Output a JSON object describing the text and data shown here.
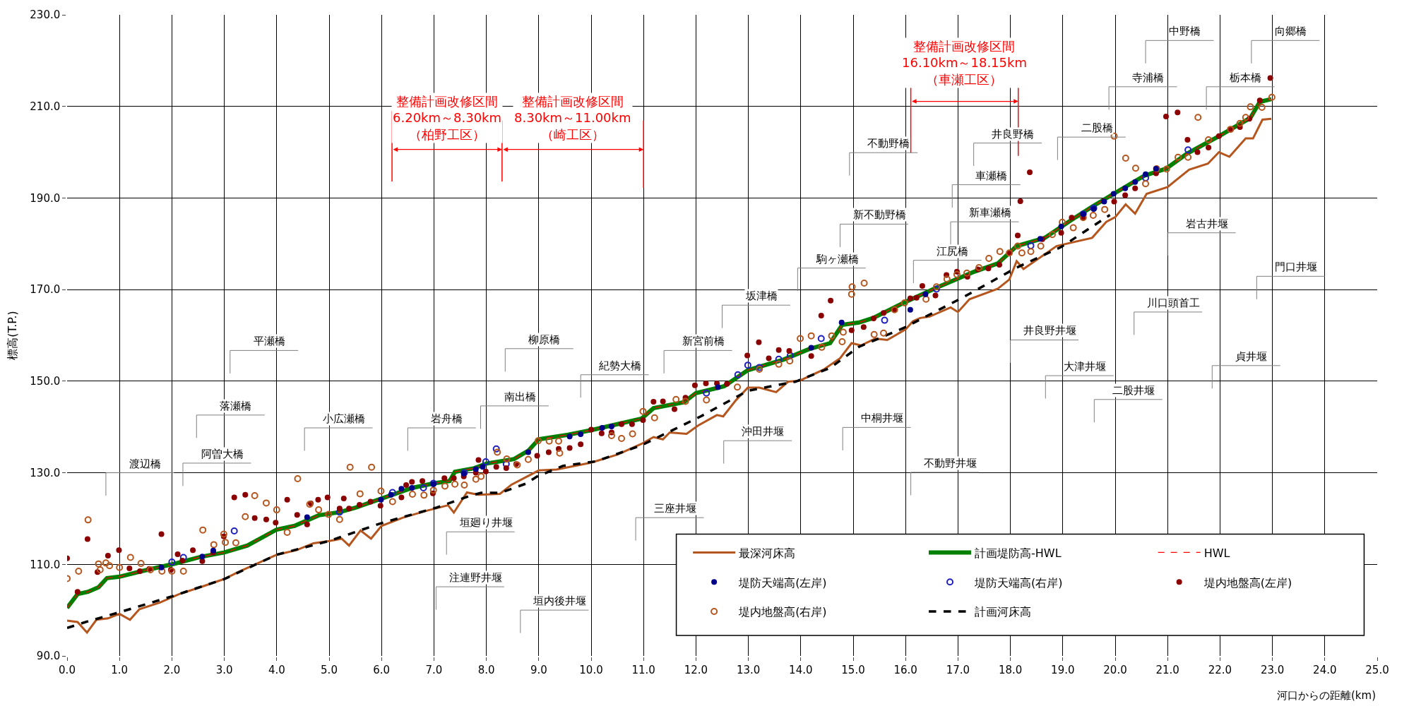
{
  "chart_data": {
    "type": "line",
    "xlabel": "河口からの距離(km)",
    "ylabel": "標高(T.P.)",
    "xlim": [
      0,
      25
    ],
    "ylim": [
      90,
      230
    ],
    "xticks": [
      {
        "value": 0,
        "label": "0.0"
      },
      {
        "value": 1,
        "label": "1.0"
      },
      {
        "value": 2,
        "label": "2.0"
      },
      {
        "value": 3,
        "label": "3.0"
      },
      {
        "value": 4,
        "label": "4.0"
      },
      {
        "value": 5,
        "label": "5.0"
      },
      {
        "value": 6,
        "label": "6.0"
      },
      {
        "value": 7,
        "label": "7.0"
      },
      {
        "value": 8,
        "label": "8.0"
      },
      {
        "value": 9,
        "label": "9.0"
      },
      {
        "value": 10,
        "label": "10.0"
      },
      {
        "value": 11,
        "label": "11.0"
      },
      {
        "value": 12,
        "label": "12.0"
      },
      {
        "value": 13,
        "label": "13.0"
      },
      {
        "value": 14,
        "label": "14.0"
      },
      {
        "value": 15,
        "label": "15.0"
      },
      {
        "value": 16,
        "label": "16.0"
      },
      {
        "value": 17,
        "label": "17.0"
      },
      {
        "value": 18,
        "label": "18.0"
      },
      {
        "value": 19,
        "label": "19.0"
      },
      {
        "value": 20,
        "label": "20.0"
      },
      {
        "value": 21,
        "label": "21.0"
      },
      {
        "value": 22,
        "label": "22.0"
      },
      {
        "value": 23,
        "label": "23.0"
      },
      {
        "value": 24,
        "label": "24.0"
      },
      {
        "value": 25,
        "label": "25.0"
      }
    ],
    "yticks": [
      {
        "value": 90,
        "label": "90.0"
      },
      {
        "value": 110,
        "label": "110.0"
      },
      {
        "value": 130,
        "label": "130.0"
      },
      {
        "value": 150,
        "label": "150.0"
      },
      {
        "value": 170,
        "label": "170.0"
      },
      {
        "value": 190,
        "label": "190.0"
      },
      {
        "value": 210,
        "label": "210.0"
      },
      {
        "value": 230,
        "label": "230.0"
      }
    ],
    "grid": true,
    "legend": "bottom right",
    "series": [
      {
        "name": "最深河床高",
        "color": "#b4561e",
        "line_style": "solid",
        "marker": "none",
        "x": [
          0,
          0.2,
          0.38,
          0.56,
          0.78,
          1.0,
          1.2,
          1.38,
          1.78,
          2.14,
          2.54,
          3.0,
          3.26,
          4.0,
          4.38,
          4.7,
          5.0,
          5.24,
          5.38,
          5.6,
          5.8,
          6.0,
          6.41,
          6.86,
          7.27,
          7.38,
          7.63,
          7.85,
          8.26,
          8.48,
          9.0,
          9.34,
          10.0,
          10.51,
          10.96,
          11.19,
          11.37,
          11.5,
          11.82,
          12.04,
          12.4,
          12.52,
          12.76,
          12.99,
          13.21,
          13.53,
          13.76,
          13.98,
          14.43,
          14.75,
          14.97,
          15.15,
          15.42,
          15.65,
          16.0,
          16.14,
          16.28,
          16.46,
          16.86,
          17.0,
          17.22,
          17.76,
          17.98,
          18.12,
          18.25,
          18.88,
          19.56,
          19.83,
          20.0,
          20.2,
          20.38,
          20.6,
          21.0,
          21.41,
          21.77,
          21.98,
          22.18,
          22.49,
          22.63,
          22.81,
          22.98
        ],
        "values": [
          97.7,
          97.4,
          95.1,
          97.9,
          98.2,
          99.2,
          97.9,
          100.2,
          101.7,
          103.5,
          105,
          106.8,
          108.3,
          112.1,
          113.1,
          114.6,
          115.1,
          115.6,
          114.1,
          117.4,
          115.6,
          118.4,
          120.2,
          121.7,
          122.9,
          121.3,
          125.7,
          125.2,
          125.4,
          127.4,
          130.5,
          130.7,
          132.2,
          134,
          136.3,
          137.8,
          137.3,
          138.8,
          138.5,
          140.3,
          142.6,
          142.3,
          145.8,
          148.6,
          148.6,
          147.6,
          149.9,
          150.1,
          152.5,
          155,
          158.3,
          157.8,
          159.3,
          159,
          161.3,
          163.1,
          163.8,
          164.1,
          166.1,
          165.1,
          167.9,
          170.2,
          172.2,
          176.2,
          174.5,
          179.5,
          181.3,
          184.8,
          185.8,
          188.6,
          186.6,
          190.9,
          192.4,
          196.2,
          197.5,
          200,
          199,
          203,
          203,
          207.1,
          207.3
        ]
      },
      {
        "name": "計画堤防高-HWL",
        "color": "#008000",
        "line_style": "solid",
        "marker": "none",
        "x": [
          0,
          0.2,
          0.4,
          0.6,
          0.76,
          1.0,
          1.42,
          2.0,
          2.54,
          3.0,
          3.44,
          4.0,
          4.34,
          4.8,
          5.2,
          5.51,
          6.01,
          6.59,
          7.0,
          7.3,
          7.4,
          7.77,
          8.0,
          8.53,
          8.8,
          9.0,
          9.56,
          10.0,
          10.96,
          11.19,
          11.77,
          12.0,
          12.54,
          12.99,
          13.67,
          14.16,
          14.56,
          14.79,
          15.11,
          15.38,
          15.96,
          16.59,
          17.31,
          17.76,
          18.12,
          18.66,
          19.11,
          19.56,
          20.0,
          20.56,
          20.97,
          21.37,
          21.98,
          22.58,
          22.76,
          22.98
        ],
        "values": [
          100.5,
          103.5,
          104,
          105,
          107,
          107.3,
          108.5,
          110,
          111.6,
          112.6,
          114.1,
          117.6,
          118.4,
          120.7,
          121.4,
          122.4,
          124.4,
          126.7,
          127.7,
          128.2,
          130.2,
          131,
          132,
          133,
          134.8,
          137.3,
          138.3,
          139.3,
          141.8,
          144.1,
          145.4,
          147.4,
          148.9,
          152.4,
          154.7,
          157,
          158.3,
          162.3,
          162.8,
          163.8,
          167.1,
          170.4,
          173.9,
          175.7,
          179.5,
          181.3,
          184.8,
          188.1,
          191.1,
          194.9,
          196.4,
          199.7,
          203.5,
          207.5,
          211,
          211.6
        ]
      },
      {
        "name": "HWL",
        "color": "#ff0000",
        "line_style": "dashed",
        "marker": "none",
        "x": [
          0,
          0.2,
          0.4,
          0.6,
          0.76,
          1.0,
          1.42,
          2.0,
          2.54,
          3.0,
          3.44,
          4.0,
          4.34,
          4.8,
          5.2,
          5.51,
          6.01,
          6.59,
          7.0,
          7.3,
          7.4,
          7.77,
          8.0,
          8.53,
          8.8,
          9.0,
          9.56,
          10.0,
          10.96,
          11.19,
          11.77,
          12.0,
          12.54,
          12.99,
          13.67,
          14.16,
          14.56,
          14.79,
          15.11,
          15.38,
          15.96,
          16.59,
          17.31,
          17.76,
          18.12,
          18.66,
          19.11,
          19.56,
          20.0,
          20.56,
          20.97,
          21.37,
          21.98,
          22.58,
          22.76,
          22.98
        ],
        "values": [
          100.5,
          103.5,
          104,
          105,
          107,
          107.3,
          108.5,
          110,
          111.6,
          112.6,
          114.1,
          117.6,
          118.4,
          120.7,
          121.4,
          122.4,
          124.4,
          126.7,
          127.7,
          128.2,
          130.2,
          131,
          132,
          133,
          134.8,
          137.3,
          138.3,
          139.3,
          141.8,
          144.1,
          145.4,
          147.4,
          148.9,
          152.4,
          154.7,
          157,
          158.3,
          162.3,
          162.8,
          163.8,
          167.1,
          170.4,
          173.9,
          175.7,
          179.5,
          181.3,
          184.8,
          188.1,
          191.1,
          194.9,
          196.4,
          199.7,
          203.5,
          207.5,
          211,
          211.6
        ]
      },
      {
        "name": "堤防天端高(左岸)",
        "type": "scatter",
        "color": "#00008b",
        "marker": "circle",
        "x": [
          1.8,
          2.58,
          2.79,
          4.58,
          5.99,
          6.18,
          6.38,
          6.58,
          6.99,
          7.57,
          7.8,
          7.93,
          8.8,
          9.59,
          9.8,
          10.21,
          10.39,
          12.42,
          14.2,
          14.78,
          16.09,
          16.38,
          18.57,
          18.97,
          19.39,
          19.59,
          19.79,
          19.97,
          20.19,
          20.38,
          20.58,
          20.78
        ],
        "values": [
          109.3,
          111.7,
          113,
          120.3,
          124.1,
          125.2,
          126.5,
          126.7,
          127.5,
          129.8,
          130.8,
          131.3,
          134.5,
          137.9,
          138.4,
          139.8,
          140.1,
          148.7,
          157.3,
          162.8,
          165.6,
          169,
          181.1,
          183.8,
          186.5,
          187.6,
          189.2,
          190.9,
          192.1,
          193.5,
          195.2,
          196.4
        ]
      },
      {
        "name": "堤防天端高(右岸)",
        "type": "scatter",
        "color": "#1f1fbf",
        "marker": "circle-open",
        "x": [
          2.0,
          2.22,
          3.19,
          5.2,
          6.21,
          6.8,
          6.99,
          7.58,
          7.99,
          8.19,
          8.38,
          12.2,
          12.8,
          12.99,
          13.21,
          13.58,
          13.8,
          14.39,
          15.6,
          16.59,
          18.39,
          19.39,
          19.59,
          20.58,
          21.39
        ],
        "values": [
          110.5,
          111.5,
          117.3,
          121.4,
          125.7,
          126.7,
          127.7,
          130,
          132.4,
          135.2,
          131.9,
          147.4,
          151.4,
          153.5,
          153,
          154.8,
          155.6,
          159.3,
          163.3,
          170.1,
          179.6,
          186.5,
          187.8,
          194.4,
          200.5
        ]
      },
      {
        "name": "堤内地盤高(左岸)",
        "type": "scatter",
        "color": "#8b0000",
        "marker": "circle",
        "x": [
          0,
          0.2,
          0.39,
          0.58,
          0.78,
          0.99,
          1.19,
          1.39,
          1.57,
          1.8,
          1.98,
          2.11,
          2.2,
          2.4,
          2.58,
          2.79,
          2.99,
          3.19,
          3.4,
          3.58,
          3.8,
          3.98,
          4.2,
          4.39,
          4.58,
          4.65,
          4.79,
          4.97,
          5.2,
          5.28,
          5.38,
          5.58,
          5.79,
          5.98,
          6.38,
          6.47,
          6.58,
          6.78,
          6.98,
          7.2,
          7.38,
          7.57,
          7.8,
          7.85,
          7.99,
          8.19,
          8.38,
          8.57,
          8.97,
          9.19,
          9.38,
          9.59,
          9.8,
          10.0,
          10.2,
          10.39,
          10.58,
          10.78,
          10.99,
          11.19,
          11.37,
          11.59,
          11.8,
          11.98,
          12.19,
          12.4,
          12.59,
          12.98,
          13.2,
          13.39,
          13.58,
          13.78,
          14.2,
          14.39,
          14.57,
          14.97,
          15.2,
          15.39,
          15.58,
          15.79,
          16.09,
          16.21,
          16.32,
          16.57,
          16.78,
          16.98,
          17.18,
          17.38,
          17.58,
          17.79,
          17.98,
          18.14,
          18.19,
          18.37,
          18.61,
          18.97,
          19.17,
          19.39,
          19.78,
          19.98,
          20.19,
          20.38,
          20.78,
          20.97,
          21.19,
          21.38,
          21.57,
          21.78,
          21.98,
          22.2,
          22.38,
          22.56,
          22.76,
          22.96
        ],
        "values": [
          111.3,
          104,
          115.5,
          108.3,
          111.9,
          113.1,
          109.1,
          108.5,
          109,
          116.6,
          108.8,
          112.2,
          110.8,
          113.1,
          110.7,
          112.6,
          116.1,
          124.6,
          125.2,
          120.1,
          119.8,
          119.1,
          124.1,
          120.8,
          118.7,
          123.3,
          124.1,
          124.6,
          122.2,
          124.4,
          122.2,
          123,
          123.7,
          122.8,
          124.6,
          127.3,
          128,
          128.2,
          125.5,
          128.8,
          128.8,
          129.2,
          130,
          132.8,
          130.3,
          131.3,
          131,
          131.9,
          133.7,
          134.5,
          135.2,
          135.4,
          136.2,
          139.4,
          138.6,
          138.8,
          140.6,
          140.6,
          141.5,
          145.5,
          145.6,
          143.9,
          146.4,
          149.1,
          149.5,
          149.5,
          149.4,
          155.6,
          158.5,
          155,
          156.8,
          156.6,
          155.5,
          164.3,
          167.6,
          161.1,
          161.8,
          163.7,
          164.9,
          165.6,
          168.1,
          168.2,
          170.8,
          168.7,
          173.2,
          173.9,
          172.8,
          174.4,
          174.6,
          175.4,
          178,
          181.8,
          189.3,
          195.6,
          181,
          182.4,
          185.7,
          185.7,
          189.3,
          189.2,
          190.6,
          192.1,
          195.4,
          207.8,
          208.7,
          202.7,
          200,
          201,
          203.5,
          205,
          205.5,
          207.3,
          211.3,
          216.2
        ]
      },
      {
        "name": "堤内地盤高(右岸)",
        "type": "scatter",
        "color": "#b4561e",
        "marker": "circle-open",
        "x": [
          0,
          0.22,
          0.4,
          0.6,
          0.63,
          0.74,
          0.81,
          1.0,
          1.21,
          1.41,
          1.59,
          1.81,
          2.0,
          2.22,
          2.59,
          2.8,
          2.99,
          3.02,
          3.22,
          3.4,
          3.58,
          3.8,
          4.0,
          4.2,
          4.4,
          4.63,
          4.8,
          4.99,
          5.2,
          5.4,
          5.59,
          5.81,
          5.99,
          6.21,
          6.59,
          6.81,
          6.99,
          7.21,
          7.4,
          7.58,
          7.8,
          7.9,
          8.21,
          8.39,
          8.59,
          8.8,
          8.99,
          9.2,
          9.38,
          9.4,
          10.39,
          10.58,
          10.79,
          10.99,
          11.21,
          11.62,
          11.8,
          12.2,
          12.79,
          13.21,
          13.58,
          13.79,
          13.99,
          14.2,
          14.4,
          14.59,
          14.79,
          14.81,
          14.97,
          14.98,
          15.21,
          15.4,
          15.58,
          15.79,
          15.98,
          16.39,
          16.59,
          16.79,
          16.98,
          17.17,
          17.4,
          17.59,
          17.8,
          17.98,
          18.14,
          18.22,
          18.39,
          18.58,
          18.8,
          18.99,
          19.2,
          19.39,
          19.58,
          19.8,
          19.98,
          20.2,
          20.39,
          20.58,
          20.79,
          20.98,
          21.2,
          21.39,
          21.58,
          21.78,
          22.2,
          22.38,
          22.49,
          22.58,
          22.8,
          22.99
        ],
        "values": [
          106.9,
          108.5,
          119.7,
          110.1,
          108.8,
          110.3,
          109.7,
          109.3,
          111.5,
          110.2,
          108.8,
          108.5,
          108.5,
          108.5,
          117.5,
          114.3,
          116.6,
          114.8,
          114.7,
          120.4,
          125,
          123.4,
          121.9,
          117,
          128.7,
          123.1,
          121.9,
          120.9,
          119.8,
          131.2,
          125.4,
          131.2,
          126,
          123.7,
          125.3,
          125.1,
          126.2,
          127.1,
          127.5,
          127.3,
          128.6,
          129.2,
          134.5,
          133,
          131.7,
          132.9,
          137,
          136.9,
          136.9,
          134.3,
          138.1,
          137.5,
          138.5,
          143.4,
          142,
          146,
          145.6,
          145.9,
          148.7,
          152.6,
          153.7,
          154.4,
          159.3,
          159.9,
          157.4,
          159.9,
          158.6,
          160.7,
          169,
          170.6,
          171.4,
          160.2,
          160.5,
          165.6,
          167.1,
          167.9,
          170.6,
          172.3,
          173.3,
          173.6,
          174.8,
          176.8,
          178.3,
          178,
          179.5,
          178,
          178.3,
          179.5,
          182,
          184.7,
          183.5,
          185.7,
          186.2,
          187.5,
          203.5,
          198.7,
          196.5,
          193.1,
          196.4,
          196.3,
          198.9,
          198.9,
          207.6,
          202.7,
          205,
          206.3,
          207.6,
          209.9,
          209.8,
          212
        ]
      },
      {
        "name": "計画河床高",
        "color": "#000000",
        "line_style": "dashed",
        "marker": "none",
        "x": [
          0,
          0.38,
          0.96,
          2.0,
          3.0,
          4.0,
          5.0,
          5.97,
          7.05,
          7.67,
          7.9,
          8.26,
          8.75,
          8.97,
          9.46,
          10.1,
          10.96,
          12.09,
          12.99,
          13.9,
          14.56,
          15.11,
          15.96,
          17.08,
          18.12,
          18.97,
          19.9
        ],
        "values": [
          96.1,
          97.5,
          99.4,
          103,
          106.8,
          112.1,
          115.1,
          118.9,
          122.4,
          124.9,
          125.6,
          125.6,
          127.6,
          129.2,
          131.5,
          132.5,
          136,
          142.3,
          147.9,
          149.9,
          152.9,
          157.5,
          161.6,
          168.2,
          174.8,
          179.3,
          186.3
        ]
      }
    ],
    "ref_lines": [
      {
        "axis": "x",
        "value": 6.2,
        "color": "#ff0000"
      },
      {
        "axis": "x",
        "value": 8.3,
        "color": "#ff0000"
      },
      {
        "axis": "x",
        "value": 11.0,
        "color": "#ff0000"
      },
      {
        "axis": "x",
        "value": 16.1,
        "color": "#ff0000"
      },
      {
        "axis": "x",
        "value": 18.15,
        "color": "#ff0000"
      }
    ],
    "annotations": [
      "渡辺橋",
      "阿曽大橋",
      "落瀬橋",
      "平瀬橋",
      "小広瀬橋",
      "岩舟橋",
      "南出橋",
      "柳原橋",
      "紀勢大橋",
      "新宮前橋",
      "坂津橋",
      "駒ヶ瀬橋",
      "新不動野橋",
      "不動野橋",
      "江尻橋",
      "新車瀬橋",
      "車瀬橋",
      "井良野橋",
      "二股橋",
      "寺浦橋",
      "中野橋",
      "栃本橋",
      "向郷橋",
      "垣廻り井堰",
      "注連野井堰",
      "垣内後井堰",
      "三座井堰",
      "沖田井堰",
      "中桐井堰",
      "不動野井堰",
      "井良野井堰",
      "大津井堰",
      "二股井堰",
      "貞井堰",
      "川口頭首工",
      "岩古井堰",
      "門口井堰",
      "整備計画改修区間\n6.20km～8.30km\n（柏野工区）",
      "整備計画改修区間\n8.30km～11.00km\n（崎工区）",
      "整備計画改修区間\n16.10km～18.15km\n（車瀬工区）"
    ]
  }
}
